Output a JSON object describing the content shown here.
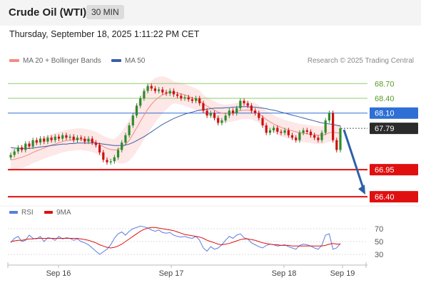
{
  "header": {
    "title": "Crude Oil (WTI)",
    "timeframe": "30 MIN",
    "datetime": "Thursday, September 18, 2025 1:11:22 PM CET"
  },
  "legend": {
    "ma20_label": "MA 20 + Bollinger Bands",
    "ma50_label": "MA 50",
    "credit": "Research © 2025 Trading Central"
  },
  "rsi_legend": {
    "rsi_label": "RSI",
    "ma9_label": "9MA"
  },
  "colors": {
    "ma20": "#f28b82",
    "ma50": "#3b5ea8",
    "bollinger_fill": "#fde3e3",
    "candle_up": "#2e8b2e",
    "candle_down": "#cc1111",
    "resistance_green": "#8fce6a",
    "resistance_blue": "#2e6fd6",
    "support_red": "#e01010",
    "arrow": "#2f5fa8",
    "rsi_line": "#5a7de0",
    "rsi_ma": "#e01010"
  },
  "chart_data": [
    {
      "type": "candlestick",
      "title": "Crude Oil (WTI)",
      "ylim": [
        66.3,
        68.95
      ],
      "x_ticks": [
        "Sep 16",
        "Sep 17",
        "Sep 18",
        "Sep 19"
      ],
      "levels": [
        {
          "value": 68.7,
          "label": "68.70",
          "style": "resistance",
          "color": "#8fce6a"
        },
        {
          "value": 68.4,
          "label": "68.40",
          "style": "resistance",
          "color": "#8fce6a"
        },
        {
          "value": 68.1,
          "label": "68.10",
          "style": "pivot",
          "color": "#2e6fd6"
        },
        {
          "value": 67.79,
          "label": "67.79",
          "style": "current",
          "color": "#333333"
        },
        {
          "value": 66.95,
          "label": "66.95",
          "style": "support",
          "color": "#e01010"
        },
        {
          "value": 66.4,
          "label": "66.40",
          "style": "support",
          "color": "#e01010"
        }
      ],
      "close_series": [
        67.25,
        67.32,
        67.4,
        67.35,
        67.48,
        67.42,
        67.55,
        67.5,
        67.58,
        67.52,
        67.6,
        67.55,
        67.62,
        67.58,
        67.65,
        67.6,
        67.62,
        67.55,
        67.6,
        67.58,
        67.52,
        67.58,
        67.5,
        67.45,
        67.3,
        67.15,
        67.1,
        67.12,
        67.2,
        67.35,
        67.5,
        67.65,
        67.85,
        68.05,
        68.25,
        68.4,
        68.55,
        68.65,
        68.6,
        68.55,
        68.58,
        68.52,
        68.5,
        68.55,
        68.48,
        68.45,
        68.4,
        68.42,
        68.38,
        68.35,
        68.4,
        68.3,
        68.15,
        68.05,
        68.1,
        68.0,
        67.9,
        67.95,
        68.05,
        68.15,
        68.1,
        68.2,
        68.35,
        68.3,
        68.25,
        68.15,
        68.1,
        68.0,
        67.85,
        67.7,
        67.75,
        67.8,
        67.72,
        67.7,
        67.75,
        67.65,
        67.6,
        67.55,
        67.7,
        67.75,
        67.72,
        67.65,
        67.6,
        67.55,
        67.7,
        67.95,
        68.1,
        67.55,
        67.35,
        67.79
      ],
      "ma20": [
        67.15,
        67.16,
        67.18,
        67.2,
        67.23,
        67.26,
        67.3,
        67.33,
        67.36,
        67.39,
        67.42,
        67.45,
        67.47,
        67.5,
        67.52,
        67.54,
        67.55,
        67.56,
        67.57,
        67.57,
        67.56,
        67.55,
        67.53,
        67.5,
        67.46,
        67.42,
        67.38,
        67.36,
        67.35,
        67.36,
        67.4,
        67.46,
        67.55,
        67.67,
        67.8,
        67.93,
        68.06,
        68.18,
        68.28,
        68.36,
        68.42,
        68.47,
        68.5,
        68.52,
        68.52,
        68.51,
        68.49,
        68.47,
        68.44,
        68.41,
        68.38,
        68.34,
        68.29,
        68.24,
        68.2,
        68.16,
        68.12,
        68.1,
        68.09,
        68.1,
        68.11,
        68.13,
        68.15,
        68.16,
        68.16,
        68.15,
        68.12,
        68.08,
        68.03,
        67.97,
        67.92,
        67.88,
        67.84,
        67.81,
        67.78,
        67.76,
        67.74,
        67.72,
        67.7,
        67.69,
        67.68,
        67.67,
        67.66,
        67.65,
        67.65,
        67.67,
        67.7,
        67.71,
        67.7,
        67.69
      ],
      "ma50": [
        67.4,
        67.39,
        67.38,
        67.38,
        67.38,
        67.38,
        67.39,
        67.4,
        67.41,
        67.42,
        67.43,
        67.44,
        67.45,
        67.46,
        67.47,
        67.47,
        67.48,
        67.48,
        67.49,
        67.49,
        67.49,
        67.49,
        67.49,
        67.49,
        67.48,
        67.47,
        67.46,
        67.45,
        67.44,
        67.44,
        67.44,
        67.45,
        67.47,
        67.5,
        67.54,
        67.58,
        67.62,
        67.67,
        67.72,
        67.77,
        67.82,
        67.87,
        67.91,
        67.95,
        67.99,
        68.02,
        68.05,
        68.08,
        68.1,
        68.12,
        68.14,
        68.16,
        68.17,
        68.18,
        68.19,
        68.2,
        68.2,
        68.2,
        68.21,
        68.21,
        68.22,
        68.22,
        68.23,
        68.23,
        68.23,
        68.22,
        68.22,
        68.21,
        68.2,
        68.19,
        68.17,
        68.16,
        68.14,
        68.12,
        68.1,
        68.08,
        68.06,
        68.04,
        68.02,
        68.0,
        67.98,
        67.96,
        67.94,
        67.92,
        67.9,
        67.89,
        67.88,
        67.87,
        67.85,
        67.84
      ],
      "forecast_arrow": {
        "from": 67.79,
        "to": 66.4
      }
    },
    {
      "type": "line",
      "title": "RSI",
      "ylim": [
        20,
        80
      ],
      "y_ticks": [
        70,
        50,
        30
      ],
      "series": [
        {
          "name": "RSI",
          "values": [
            48,
            55,
            58,
            50,
            52,
            60,
            55,
            54,
            58,
            50,
            56,
            55,
            52,
            58,
            54,
            56,
            55,
            52,
            54,
            50,
            48,
            45,
            40,
            35,
            30,
            34,
            38,
            45,
            55,
            62,
            65,
            60,
            66,
            70,
            72,
            74,
            73,
            71,
            68,
            66,
            68,
            64,
            63,
            64,
            60,
            58,
            57,
            58,
            56,
            55,
            58,
            52,
            40,
            35,
            42,
            38,
            40,
            45,
            52,
            58,
            55,
            60,
            62,
            56,
            54,
            48,
            45,
            42,
            40,
            44,
            46,
            45,
            43,
            44,
            45,
            42,
            40,
            38,
            44,
            46,
            45,
            43,
            40,
            38,
            44,
            60,
            62,
            38,
            40,
            47
          ]
        },
        {
          "name": "9MA",
          "values": [
            50,
            51,
            52,
            52,
            53,
            54,
            54,
            55,
            55,
            55,
            55,
            55,
            55,
            55,
            55,
            55,
            55,
            55,
            55,
            54,
            53,
            52,
            50,
            48,
            45,
            43,
            41,
            40,
            41,
            43,
            46,
            50,
            54,
            58,
            62,
            66,
            69,
            71,
            72,
            72,
            71,
            70,
            69,
            68,
            67,
            65,
            63,
            61,
            60,
            59,
            58,
            57,
            55,
            52,
            50,
            48,
            46,
            45,
            46,
            47,
            49,
            51,
            53,
            54,
            54,
            53,
            52,
            50,
            48,
            47,
            46,
            45,
            45,
            44,
            44,
            44,
            43,
            43,
            43,
            43,
            43,
            43,
            43,
            43,
            43,
            44,
            46,
            47,
            46,
            46
          ]
        }
      ]
    }
  ]
}
